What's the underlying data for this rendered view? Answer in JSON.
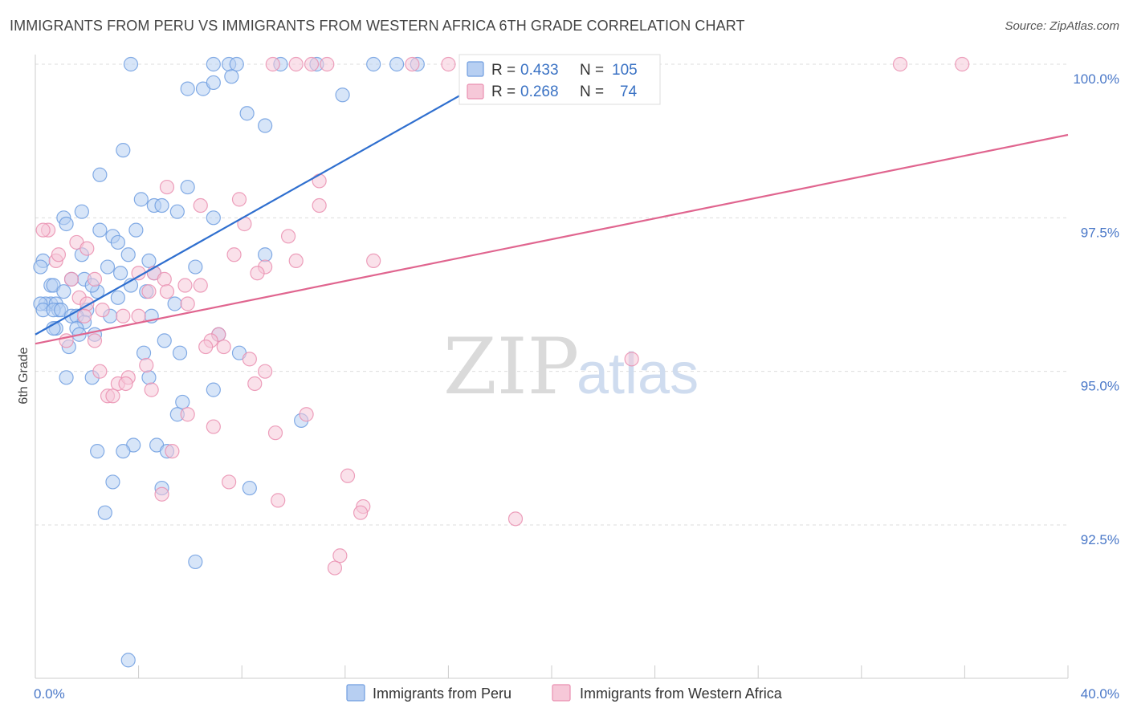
{
  "title": "IMMIGRANTS FROM PERU VS IMMIGRANTS FROM WESTERN AFRICA 6TH GRADE CORRELATION CHART",
  "source": "Source: ZipAtlas.com",
  "watermark": {
    "zip": "ZIP",
    "atlas": "atlas"
  },
  "colors": {
    "peru": "#6f9de0",
    "peru_fill": "#b7cff2",
    "western_africa": "#ea8fb0",
    "western_africa_fill": "#f6c8d8",
    "peru_line": "#2f6fcf",
    "western_africa_line": "#e0658f",
    "grid": "#dddddd",
    "axis_text": "#4a78c8"
  },
  "stats": {
    "r_label": "R =",
    "n_label": "N =",
    "peru": {
      "r": "0.433",
      "n": "105"
    },
    "western_africa": {
      "r": "0.268",
      "n": "74"
    }
  },
  "chart_data": {
    "type": "scatter",
    "title": "IMMIGRANTS FROM PERU VS IMMIGRANTS FROM WESTERN AFRICA 6TH GRADE CORRELATION CHART",
    "xlabel": "",
    "ylabel": "6th Grade",
    "xlim": [
      0,
      40
    ],
    "ylim": [
      90.0,
      100.4
    ],
    "x_tick_labels": [
      "0.0%",
      "40.0%"
    ],
    "y_ticks": [
      92.5,
      95.0,
      97.5,
      100.0
    ],
    "y_tick_labels": [
      "92.5%",
      "95.0%",
      "97.5%",
      "100.0%"
    ],
    "grid": true,
    "legend_position": "bottom-center",
    "series": [
      {
        "name": "Immigrants from Peru",
        "trend": {
          "x": [
            0.0,
            18.6
          ],
          "y": [
            95.6,
            100.0
          ]
        },
        "points": [
          [
            3.7,
            100.0
          ],
          [
            6.9,
            100.0
          ],
          [
            7.5,
            100.0
          ],
          [
            7.8,
            100.0
          ],
          [
            9.5,
            100.0
          ],
          [
            10.9,
            100.0
          ],
          [
            13.1,
            100.0
          ],
          [
            14.0,
            100.0
          ],
          [
            14.8,
            100.0
          ],
          [
            5.9,
            99.6
          ],
          [
            6.5,
            99.6
          ],
          [
            6.9,
            99.7
          ],
          [
            7.6,
            99.8
          ],
          [
            11.9,
            99.5
          ],
          [
            8.2,
            99.2
          ],
          [
            8.9,
            99.0
          ],
          [
            3.4,
            98.6
          ],
          [
            2.5,
            98.2
          ],
          [
            5.9,
            98.0
          ],
          [
            4.1,
            97.8
          ],
          [
            4.6,
            97.7
          ],
          [
            5.5,
            97.6
          ],
          [
            4.9,
            97.7
          ],
          [
            6.9,
            97.5
          ],
          [
            1.8,
            97.6
          ],
          [
            1.1,
            97.5
          ],
          [
            1.2,
            97.4
          ],
          [
            3.9,
            97.3
          ],
          [
            2.5,
            97.3
          ],
          [
            3.0,
            97.2
          ],
          [
            3.2,
            97.1
          ],
          [
            1.8,
            96.9
          ],
          [
            3.6,
            96.9
          ],
          [
            4.4,
            96.8
          ],
          [
            8.9,
            96.9
          ],
          [
            0.3,
            96.8
          ],
          [
            0.2,
            96.7
          ],
          [
            2.8,
            96.7
          ],
          [
            3.3,
            96.6
          ],
          [
            6.2,
            96.7
          ],
          [
            4.6,
            96.6
          ],
          [
            1.4,
            96.5
          ],
          [
            1.9,
            96.5
          ],
          [
            3.7,
            96.4
          ],
          [
            0.6,
            96.4
          ],
          [
            0.7,
            96.4
          ],
          [
            1.1,
            96.3
          ],
          [
            2.4,
            96.3
          ],
          [
            2.2,
            96.4
          ],
          [
            4.3,
            96.3
          ],
          [
            3.2,
            96.2
          ],
          [
            0.6,
            96.1
          ],
          [
            0.4,
            96.1
          ],
          [
            0.8,
            96.1
          ],
          [
            0.2,
            96.1
          ],
          [
            0.3,
            96.0
          ],
          [
            0.9,
            96.0
          ],
          [
            0.7,
            96.0
          ],
          [
            1.0,
            96.0
          ],
          [
            2.0,
            96.0
          ],
          [
            5.4,
            96.1
          ],
          [
            1.4,
            95.9
          ],
          [
            1.6,
            95.9
          ],
          [
            2.9,
            95.9
          ],
          [
            4.5,
            95.9
          ],
          [
            1.9,
            95.8
          ],
          [
            0.8,
            95.7
          ],
          [
            1.6,
            95.7
          ],
          [
            0.7,
            95.7
          ],
          [
            2.3,
            95.6
          ],
          [
            1.7,
            95.6
          ],
          [
            7.1,
            95.6
          ],
          [
            5.0,
            95.5
          ],
          [
            1.3,
            95.4
          ],
          [
            4.2,
            95.3
          ],
          [
            7.9,
            95.3
          ],
          [
            5.6,
            95.3
          ],
          [
            1.2,
            94.9
          ],
          [
            2.2,
            94.9
          ],
          [
            4.4,
            94.9
          ],
          [
            6.9,
            94.7
          ],
          [
            5.7,
            94.5
          ],
          [
            5.5,
            94.3
          ],
          [
            10.3,
            94.2
          ],
          [
            4.7,
            93.8
          ],
          [
            3.8,
            93.8
          ],
          [
            3.4,
            93.7
          ],
          [
            2.4,
            93.7
          ],
          [
            5.1,
            93.7
          ],
          [
            3.0,
            93.2
          ],
          [
            4.9,
            93.1
          ],
          [
            8.3,
            93.1
          ],
          [
            2.7,
            92.7
          ],
          [
            6.2,
            91.9
          ],
          [
            3.6,
            90.3
          ]
        ]
      },
      {
        "name": "Immigrants from Western Africa",
        "trend": {
          "x": [
            0.0,
            40.0
          ],
          "y": [
            95.45,
            98.85
          ]
        },
        "points": [
          [
            9.2,
            100.0
          ],
          [
            10.1,
            100.0
          ],
          [
            10.7,
            100.0
          ],
          [
            11.3,
            100.0
          ],
          [
            14.6,
            100.0
          ],
          [
            16.0,
            100.0
          ],
          [
            16.7,
            100.0
          ],
          [
            17.1,
            100.0
          ],
          [
            33.5,
            100.0
          ],
          [
            35.9,
            100.0
          ],
          [
            11.0,
            98.1
          ],
          [
            5.1,
            98.0
          ],
          [
            7.9,
            97.8
          ],
          [
            6.4,
            97.7
          ],
          [
            11.0,
            97.7
          ],
          [
            0.5,
            97.3
          ],
          [
            0.3,
            97.3
          ],
          [
            8.1,
            97.4
          ],
          [
            9.8,
            97.2
          ],
          [
            1.6,
            97.1
          ],
          [
            2.0,
            97.0
          ],
          [
            0.8,
            96.8
          ],
          [
            0.9,
            96.9
          ],
          [
            7.7,
            96.9
          ],
          [
            13.1,
            96.8
          ],
          [
            10.1,
            96.8
          ],
          [
            8.9,
            96.7
          ],
          [
            4.0,
            96.6
          ],
          [
            4.6,
            96.6
          ],
          [
            8.6,
            96.6
          ],
          [
            5.0,
            96.5
          ],
          [
            2.3,
            96.5
          ],
          [
            1.4,
            96.5
          ],
          [
            5.8,
            96.4
          ],
          [
            6.4,
            96.4
          ],
          [
            4.4,
            96.3
          ],
          [
            5.1,
            96.3
          ],
          [
            1.7,
            96.2
          ],
          [
            2.0,
            96.1
          ],
          [
            5.9,
            96.1
          ],
          [
            2.6,
            96.0
          ],
          [
            3.4,
            95.9
          ],
          [
            4.0,
            95.9
          ],
          [
            1.9,
            95.9
          ],
          [
            1.2,
            95.5
          ],
          [
            2.3,
            95.5
          ],
          [
            7.1,
            95.6
          ],
          [
            6.8,
            95.5
          ],
          [
            7.3,
            95.4
          ],
          [
            6.6,
            95.4
          ],
          [
            4.3,
            95.1
          ],
          [
            8.3,
            95.2
          ],
          [
            23.1,
            95.2
          ],
          [
            2.5,
            95.0
          ],
          [
            8.9,
            95.0
          ],
          [
            3.2,
            94.8
          ],
          [
            3.6,
            94.9
          ],
          [
            3.5,
            94.8
          ],
          [
            8.5,
            94.8
          ],
          [
            4.5,
            94.7
          ],
          [
            2.8,
            94.6
          ],
          [
            3.0,
            94.6
          ],
          [
            5.9,
            94.3
          ],
          [
            10.5,
            94.3
          ],
          [
            6.9,
            94.1
          ],
          [
            9.3,
            94.0
          ],
          [
            5.3,
            93.7
          ],
          [
            7.5,
            93.2
          ],
          [
            12.1,
            93.3
          ],
          [
            4.9,
            93.0
          ],
          [
            9.4,
            92.9
          ],
          [
            12.7,
            92.8
          ],
          [
            12.6,
            92.7
          ],
          [
            18.6,
            92.6
          ],
          [
            11.8,
            92.0
          ],
          [
            11.6,
            91.8
          ]
        ]
      }
    ]
  },
  "legend": [
    {
      "label": "Immigrants from Peru"
    },
    {
      "label": "Immigrants from Western Africa"
    }
  ]
}
